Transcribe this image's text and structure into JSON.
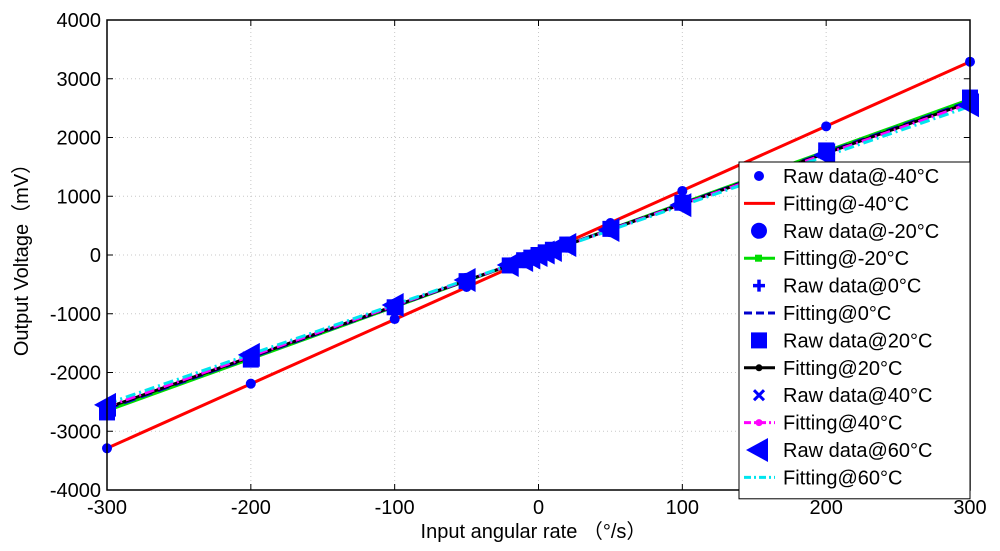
{
  "chart_data": {
    "type": "scatter",
    "title": "",
    "xlabel": "Input angular rate （°/s）",
    "ylabel": "Output Voltage（mV）",
    "xlim": [
      -300,
      300
    ],
    "ylim": [
      -4000,
      4000
    ],
    "xticks": [
      -300,
      -200,
      -100,
      0,
      100,
      200,
      300
    ],
    "yticks": [
      -4000,
      -3000,
      -2000,
      -1000,
      0,
      1000,
      2000,
      3000,
      4000
    ],
    "grid": true,
    "legend_position": "right",
    "x": [
      -300,
      -200,
      -100,
      -50,
      -20,
      -10,
      -5,
      0,
      5,
      10,
      20,
      50,
      100,
      200,
      300
    ],
    "series": [
      {
        "name": "Raw data@-40°C",
        "kind": "raw",
        "marker": "circle-small",
        "color": "#0000ff",
        "values": [
          -3290,
          -2190,
          -1090,
          -545,
          -218,
          -109,
          -55,
          0,
          55,
          109,
          218,
          545,
          1090,
          2190,
          3290
        ]
      },
      {
        "name": "Fitting@-40°C",
        "kind": "fit",
        "color": "#ff0000",
        "dash": "solid",
        "line": [
          [
            -300,
            -3290
          ],
          [
            300,
            3290
          ]
        ]
      },
      {
        "name": "Raw data@-20°C",
        "kind": "raw",
        "marker": "circle",
        "color": "#0000ff",
        "values": [
          -2650,
          -1770,
          -880,
          -440,
          -176,
          -88,
          -44,
          0,
          44,
          88,
          176,
          440,
          880,
          1770,
          2650
        ]
      },
      {
        "name": "Fitting@-20°C",
        "kind": "fit",
        "color": "#00dd00",
        "dash": "solid",
        "marker": "square",
        "line": [
          [
            -300,
            -2650
          ],
          [
            300,
            2650
          ]
        ]
      },
      {
        "name": "Raw data@0°C",
        "kind": "raw",
        "marker": "plus",
        "color": "#0000ff",
        "values": [
          -2620,
          -1750,
          -870,
          -435,
          -174,
          -87,
          -44,
          0,
          44,
          87,
          174,
          435,
          870,
          1750,
          2620
        ]
      },
      {
        "name": "Fitting@0°C",
        "kind": "fit",
        "color": "#0000cc",
        "dash": "dashed",
        "line": [
          [
            -300,
            -2620
          ],
          [
            300,
            2620
          ]
        ]
      },
      {
        "name": "Raw data@20°C",
        "kind": "raw",
        "marker": "square",
        "color": "#0000ff",
        "values": [
          -2680,
          -1780,
          -890,
          -445,
          -178,
          -89,
          -45,
          0,
          45,
          89,
          178,
          445,
          890,
          1780,
          2680
        ]
      },
      {
        "name": "Fitting@20°C",
        "kind": "fit",
        "color": "#000000",
        "dash": "solid",
        "marker": "dot",
        "line": [
          [
            -300,
            -2600
          ],
          [
            300,
            2600
          ]
        ]
      },
      {
        "name": "Raw data@40°C",
        "kind": "raw",
        "marker": "x",
        "color": "#0000ff",
        "values": [
          -2580,
          -1720,
          -860,
          -430,
          -172,
          -86,
          -43,
          0,
          43,
          86,
          172,
          430,
          860,
          1720,
          2580
        ]
      },
      {
        "name": "Fitting@40°C",
        "kind": "fit",
        "color": "#ff00ff",
        "dash": "dashdot",
        "marker": "dot",
        "line": [
          [
            -300,
            -2580
          ],
          [
            300,
            2580
          ]
        ]
      },
      {
        "name": "Raw data@60°C",
        "kind": "raw",
        "marker": "triangle-left",
        "color": "#0000ff",
        "values": [
          -2550,
          -1700,
          -850,
          -425,
          -170,
          -85,
          -43,
          0,
          43,
          85,
          170,
          425,
          850,
          1700,
          2550
        ]
      },
      {
        "name": "Fitting@60°C",
        "kind": "fit",
        "color": "#00e5ee",
        "dash": "dashdot",
        "line": [
          [
            -300,
            -2530
          ],
          [
            300,
            2530
          ]
        ]
      }
    ]
  }
}
